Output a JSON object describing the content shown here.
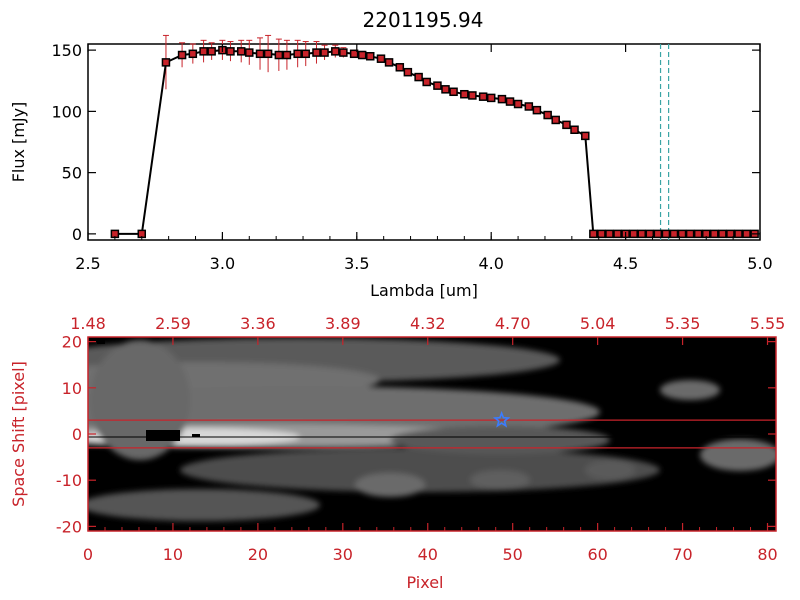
{
  "colors": {
    "axis_black": "#000000",
    "accent_red": "#c8232a",
    "dashed_teal": "#3aa5a5",
    "marker_blue": "#3b7cff"
  },
  "chart_data": [
    {
      "type": "line",
      "title": "2201195.94",
      "xlabel": "Lambda [um]",
      "ylabel": "Flux [mJy]",
      "xlim": [
        2.5,
        5.0
      ],
      "ylim": [
        -5,
        155
      ],
      "xticks": [
        "2.5",
        "3.0",
        "3.5",
        "4.0",
        "4.5",
        "5.0"
      ],
      "yticks": [
        "0",
        "50",
        "100",
        "150"
      ],
      "grid": false,
      "series": [
        {
          "x": [
            2.6,
            2.7,
            2.79,
            2.85,
            2.89,
            2.93,
            2.96,
            3.0,
            3.03,
            3.07,
            3.1,
            3.14,
            3.17,
            3.21,
            3.24,
            3.28,
            3.31,
            3.35,
            3.38,
            3.42,
            3.45,
            3.49,
            3.52,
            3.55,
            3.59,
            3.62,
            3.66,
            3.69,
            3.73,
            3.76,
            3.8,
            3.83,
            3.86,
            3.9,
            3.93,
            3.97,
            4.0,
            4.04,
            4.07,
            4.1,
            4.14,
            4.17,
            4.21,
            4.24,
            4.28,
            4.31,
            4.35,
            4.38,
            4.41,
            4.44,
            4.47,
            4.5,
            4.53,
            4.56,
            4.59,
            4.62,
            4.65,
            4.68,
            4.71,
            4.74,
            4.77,
            4.8,
            4.83,
            4.86,
            4.89,
            4.92,
            4.95,
            4.98
          ],
          "y": [
            0,
            0,
            140,
            146,
            147,
            149,
            149,
            150,
            149,
            149,
            148,
            147,
            147,
            146,
            146,
            147,
            147,
            148,
            148,
            149,
            148,
            147,
            146,
            145,
            143,
            140,
            136,
            132,
            128,
            124,
            121,
            118,
            116,
            114,
            113,
            112,
            111,
            110,
            108,
            106,
            104,
            101,
            97,
            93,
            89,
            85,
            80,
            0,
            0,
            0,
            0,
            0,
            0,
            0,
            0,
            0,
            0,
            0,
            0,
            0,
            0,
            0,
            0,
            0,
            0,
            0,
            0,
            0
          ],
          "yerr": [
            0,
            0,
            22,
            10,
            8,
            9,
            7,
            8,
            8,
            9,
            10,
            13,
            15,
            13,
            12,
            11,
            10,
            9,
            6,
            5,
            4,
            3,
            3,
            3,
            2,
            2,
            2,
            2,
            2,
            2,
            2,
            2,
            2,
            2,
            2,
            2,
            2,
            2,
            2,
            2,
            2,
            2,
            2,
            2,
            2,
            2,
            2,
            0,
            0,
            0,
            0,
            0,
            0,
            0,
            0,
            0,
            0,
            0,
            0,
            0,
            0,
            0,
            0,
            0,
            0,
            0,
            0,
            0
          ]
        }
      ],
      "vlines_dashed": [
        4.63,
        4.66
      ]
    },
    {
      "type": "heatmap",
      "xlabel": "Pixel",
      "ylabel": "Space Shift [pixel]",
      "xlim": [
        0,
        81
      ],
      "ylim": [
        -21,
        21
      ],
      "xticks": [
        "0",
        "10",
        "20",
        "30",
        "40",
        "50",
        "60",
        "70",
        "80"
      ],
      "yticks": [
        "-20",
        "-10",
        "0",
        "10",
        "20"
      ],
      "top_xticks": [
        "1.48",
        "2.59",
        "3.36",
        "3.89",
        "4.32",
        "4.70",
        "5.04",
        "5.35",
        "5.55"
      ],
      "aperture_lines": [
        3,
        -3
      ],
      "star_marker": {
        "x": 48.7,
        "y": 3
      }
    }
  ]
}
